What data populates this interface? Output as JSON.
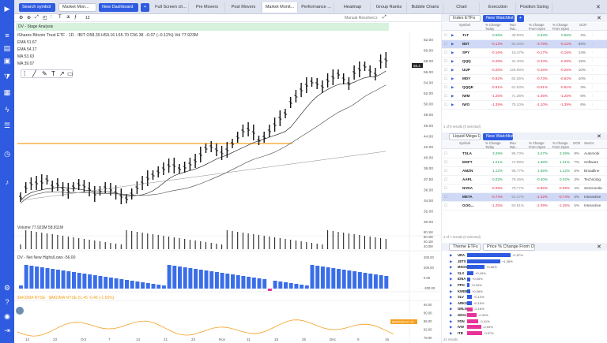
{
  "topbar": {
    "search_placeholder": "Search symbol",
    "dashboard_label": "Market Mon...",
    "new_dashboard": "New Dashboard",
    "add_symbol": "+",
    "tabs": [
      "Full Screen ch...",
      "Pre Movers",
      "Post Movers",
      "Market Monit...",
      "Performance ...",
      "Heatmap",
      "Group Ranks",
      "Bubble Charts",
      "Chart",
      "Execution",
      "Position Sizing"
    ],
    "active_tab": "Market Monit...",
    "close": "✕"
  },
  "chart": {
    "toolbar_num": "12",
    "manual_label": "Manual Resolve",
    "banner": "DV - Stage Analysis",
    "title": "iShares Bitcoin Trust ETF · 1D · IBIT  O58.39 H59.16 L55.70 C56.38 −0.07 (−0.12%)  Vol 77.923M",
    "indicators": [
      "EMA 51.67",
      "EMA 54.17",
      "MA 53.63",
      "MA 39.07"
    ],
    "price_badge": "56.4",
    "y_labels": [
      "62.00",
      "60.00",
      "58.00",
      "56.00",
      "54.00",
      "52.00",
      "50.00",
      "48.00",
      "46.00",
      "44.00",
      "42.00",
      "40.00",
      "38.00",
      "37.50",
      "36.00",
      "34.00",
      "32.00",
      "30.00"
    ],
    "volume_label": "Volume  77.923M  58.811M",
    "vol_axis": [
      "80.1M",
      "60.1M",
      "40.1M",
      "20.0M"
    ],
    "nh_label": "DV - Net New Highs/Lows  -56.00",
    "nh_axis": [
      "400.00",
      "200.00",
      "0.00",
      "-200.00"
    ],
    "s5_label": "$AKDMA NYSE · $AKDMA NYSE  21.45 -0.46 (-1.56%)",
    "s5_badge": "$AKDMA 87.16",
    "s5_axis": [
      "94.00",
      "90.00",
      "86.00",
      "82.00",
      "78.00"
    ],
    "x_labels": [
      "14",
      "23",
      "Oct",
      "7",
      "14",
      "21",
      "23",
      "Nov",
      "11",
      "18",
      "25",
      "Dec",
      "9",
      "16"
    ]
  },
  "watchlist1": {
    "selector": "Index ETFs",
    "new_btn": "New Watchlist",
    "add_btn": "+",
    "headers": [
      "Symbol",
      "% Change Today",
      "Run Rat..",
      "% Change From Open",
      "% Change From Open",
      "GCR"
    ],
    "rows": [
      {
        "symbol": "TLT",
        "chg": "0.56%",
        "run": "39.90%",
        "open": "0.53%",
        "open2": "0.56%",
        "gcr": "2%",
        "dir": "pos"
      },
      {
        "symbol": "IBIT",
        "chg": "-0.12%",
        "run": "50.48%",
        "open": "-3.76%",
        "open2": "-0.12%",
        "gcr": "56%",
        "dir": "neg"
      },
      {
        "symbol": "SPY",
        "chg": "-0.16%",
        "run": "15.47%",
        "open": "-0.17%",
        "open2": "-0.16%",
        "gcr": "14%",
        "dir": "neg"
      },
      {
        "symbol": "QQQ",
        "chg": "-0.28%",
        "run": "24.40%",
        "open": "-0.33%",
        "open2": "-0.28%",
        "gcr": "15%",
        "dir": "neg"
      },
      {
        "symbol": "UUP",
        "chg": "-0.26%",
        "run": "125.66%",
        "open": "-0.26%",
        "open2": "-0.26%",
        "gcr": "10%",
        "dir": "neg"
      },
      {
        "symbol": "MDY",
        "chg": "-0.62%",
        "run": "62.35%",
        "open": "-0.73%",
        "open2": "-0.62%",
        "gcr": "10%",
        "dir": "neg"
      },
      {
        "symbol": "QQQE",
        "chg": "-0.61%",
        "run": "61.03%",
        "open": "-0.61%",
        "open2": "-0.61%",
        "gcr": "3%",
        "dir": "neg"
      },
      {
        "symbol": "IWM",
        "chg": "-1.25%",
        "run": "71.36%",
        "open": "-1.05%",
        "open2": "-1.25%",
        "gcr": "6%",
        "dir": "neg"
      },
      {
        "symbol": "IWO",
        "chg": "-1.39%",
        "run": "78.10%",
        "open": "-1.10%",
        "open2": "-1.39%",
        "gcr": "6%",
        "dir": "neg"
      }
    ],
    "footer": "1 of 9 results (0 selected)"
  },
  "watchlist2": {
    "selector": "Liquid Mega C...",
    "new_btn": "New Watchlist",
    "headers": [
      "Symbol",
      "% Change Today",
      "Run Rat..",
      "% Change From Open",
      "% Change From Open",
      "GCR",
      "Sector"
    ],
    "rows": [
      {
        "symbol": "TSLA",
        "chg": "3.29%",
        "run": "96.73%",
        "open": "3.47%",
        "open2": "3.29%",
        "gcr": "9%",
        "sector": "Automobi",
        "dir": "pos",
        "logo": "#cc2a2a"
      },
      {
        "symbol": "MSFT",
        "chg": "1.21%",
        "run": "72.98%",
        "open": "1.08%",
        "open2": "1.21%",
        "gcr": "7%",
        "sector": "Software",
        "dir": "pos",
        "logo": "#f25022"
      },
      {
        "symbol": "AMZN",
        "chg": "1.12%",
        "run": "95.77%",
        "open": "1.05%",
        "open2": "1.12%",
        "gcr": "5%",
        "sector": "Broadline",
        "dir": "pos",
        "logo": "#f3a613"
      },
      {
        "symbol": "AAPL",
        "chg": "0.02%",
        "run": "76.46%",
        "open": "-0.40%",
        "open2": "0.02%",
        "gcr": "3%",
        "sector": "Technolog",
        "dir": "pos",
        "logo": "#222222"
      },
      {
        "symbol": "NVDA",
        "chg": "-0.09%",
        "run": "78.77%",
        "open": "-0.86%",
        "open2": "-0.09%",
        "gcr": "4%",
        "sector": "Semicondu",
        "dir": "neg",
        "logo": "#76b900"
      },
      {
        "symbol": "META",
        "chg": "-0.74%",
        "run": "62.27%",
        "open": "-1.32%",
        "open2": "-0.74%",
        "gcr": "5%",
        "sector": "Interactive",
        "dir": "neg",
        "logo": "#1877f2"
      },
      {
        "symbol": "GOG...",
        "chg": "-1.25%",
        "run": "82.81%",
        "open": "-1.09%",
        "open2": "-1.25%",
        "gcr": "5%",
        "sector": "Interactive",
        "dir": "neg",
        "logo": "#4285f4"
      }
    ],
    "footer": "4 of 7 results (0 selected)"
  },
  "watchlist3": {
    "selector": "Theme ETFs",
    "sort_selector": "Price % Change From O...",
    "headers": [
      "Symbol",
      "% Change"
    ],
    "rows": [
      {
        "symbol": "URA",
        "chg": "+1.87%",
        "frac": 0.55,
        "dir": "pos"
      },
      {
        "symbol": "JETS",
        "chg": "+1.38%",
        "frac": 0.42,
        "dir": "pos"
      },
      {
        "symbol": "MSOS",
        "chg": "+0.66%",
        "frac": 0.22,
        "dir": "pos"
      },
      {
        "symbol": "SLX",
        "chg": "+0.18%",
        "frac": 0.08,
        "dir": "pos"
      },
      {
        "symbol": "IDNA",
        "chg": "+0.05%",
        "frac": 0.04,
        "dir": "pos"
      },
      {
        "symbol": "PPH",
        "chg": "+0.04%",
        "frac": 0.03,
        "dir": "pos"
      },
      {
        "symbol": "KWEB",
        "chg": "+0.06%",
        "frac": 0.04,
        "dir": "pos"
      },
      {
        "symbol": "SLV",
        "chg": "+0.13%",
        "frac": 0.06,
        "dir": "pos"
      },
      {
        "symbol": "ARKG",
        "chg": "+0.15%",
        "frac": 0.06,
        "dir": "pos"
      },
      {
        "symbol": "GNLN",
        "chg": "-0.16%",
        "frac": 0.07,
        "dir": "neg"
      },
      {
        "symbol": "GDXJ",
        "chg": "-0.34%",
        "frac": 0.12,
        "dir": "neg"
      },
      {
        "symbol": "FDN",
        "chg": "-0.41%",
        "frac": 0.14,
        "dir": "neg"
      },
      {
        "symbol": "IVW",
        "chg": "-0.53%",
        "frac": 0.18,
        "dir": "neg"
      },
      {
        "symbol": "ITB",
        "chg": "-0.57%",
        "frac": 0.19,
        "dir": "neg"
      }
    ],
    "footer": "24 results"
  },
  "colors": {
    "accent": "#2f5be0",
    "up": "#1f9d55",
    "down": "#e0304a",
    "bar": "#3a6ee8",
    "orange": "#f5a020"
  }
}
